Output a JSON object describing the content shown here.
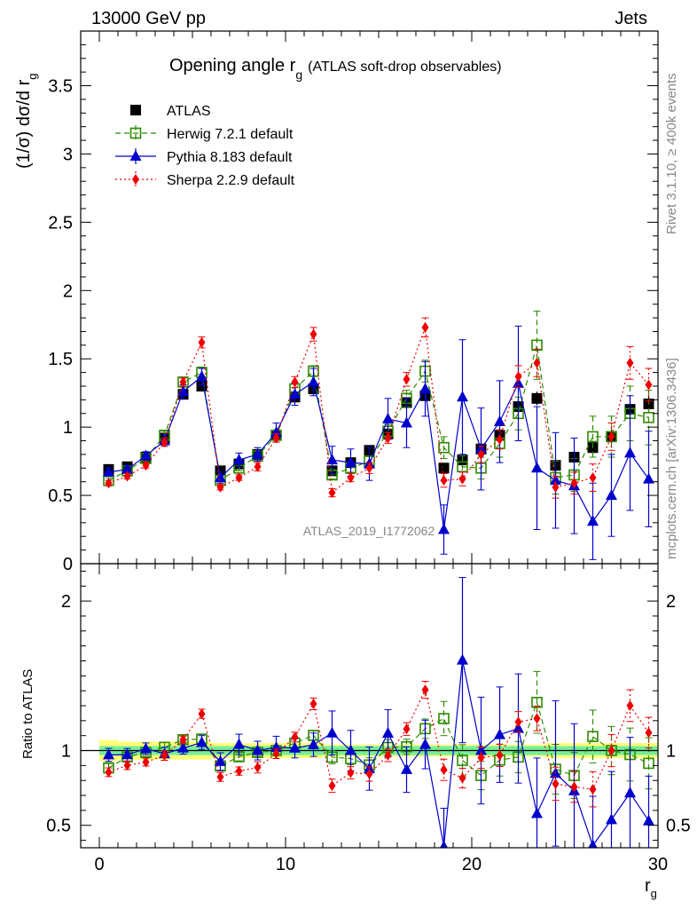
{
  "header": {
    "energy": "13000 GeV pp",
    "category": "Jets"
  },
  "side": {
    "rivet": "Rivet 3.1.10, ≥ 400k events",
    "mcplots": "mcplots.cern.ch [arXiv:1306.3436]"
  },
  "chart_data": {
    "type": "scatter",
    "title_main": "Opening angle r",
    "title_sub": "g",
    "title_paren": "(ATLAS soft-drop observables)",
    "analysis_id": "ATLAS_2019_I1772062",
    "xlabel_main": "r",
    "xlabel_sub": "g",
    "ylabel_main": "(1/σ) dσ/d r",
    "ylabel_sub": "g",
    "ratio_ylabel": "Ratio to ATLAS",
    "xlim": [
      -1,
      30
    ],
    "ylim_main": [
      0,
      3.9
    ],
    "ylim_ratio": [
      0.35,
      2.25
    ],
    "x_ticks": [
      "0",
      "10",
      "20",
      "30"
    ],
    "y_ticks_main": [
      "0",
      "0.5",
      "1",
      "1.5",
      "2",
      "2.5",
      "3",
      "3.5"
    ],
    "y_ticks_ratio": [
      "0.5",
      "1",
      "2"
    ],
    "x": [
      0.5,
      1.5,
      2.5,
      3.5,
      4.5,
      5.5,
      6.5,
      7.5,
      8.5,
      9.5,
      10.5,
      11.5,
      12.5,
      13.5,
      14.5,
      15.5,
      16.5,
      17.5,
      18.5,
      19.5,
      20.5,
      21.5,
      22.5,
      23.5,
      24.5,
      25.5,
      26.5,
      27.5,
      28.5,
      29.5
    ],
    "series": [
      {
        "name": "ATLAS",
        "color": "#000000",
        "marker": "square",
        "values": [
          0.69,
          0.71,
          0.78,
          0.92,
          1.24,
          1.3,
          0.68,
          0.73,
          0.8,
          0.94,
          1.22,
          1.28,
          0.68,
          0.74,
          0.83,
          0.95,
          1.18,
          1.23,
          0.7,
          0.76,
          0.84,
          0.94,
          1.15,
          1.21,
          0.72,
          0.78,
          0.85,
          0.93,
          1.13,
          1.17
        ],
        "errors": [
          0.02,
          0.02,
          0.02,
          0.02,
          0.03,
          0.03,
          0.02,
          0.02,
          0.02,
          0.02,
          0.03,
          0.03,
          0.02,
          0.02,
          0.02,
          0.03,
          0.03,
          0.04,
          0.03,
          0.03,
          0.03,
          0.04,
          0.05,
          0.05,
          0.04,
          0.04,
          0.05,
          0.05,
          0.05,
          0.06
        ]
      },
      {
        "name": "Herwig 7.2.1 default",
        "color": "#2e8a00",
        "marker": "open-square",
        "dash": "6,4",
        "values": [
          0.61,
          0.68,
          0.77,
          0.94,
          1.33,
          1.4,
          0.61,
          0.7,
          0.79,
          0.94,
          1.28,
          1.41,
          0.65,
          0.7,
          0.75,
          0.97,
          1.21,
          1.41,
          0.85,
          0.71,
          0.7,
          0.88,
          1.1,
          1.6,
          0.63,
          0.65,
          0.93,
          0.93,
          1.1,
          1.07
        ],
        "errors": [
          0.02,
          0.02,
          0.02,
          0.03,
          0.03,
          0.04,
          0.02,
          0.02,
          0.02,
          0.03,
          0.04,
          0.04,
          0.03,
          0.03,
          0.04,
          0.05,
          0.06,
          0.08,
          0.08,
          0.08,
          0.08,
          0.1,
          0.12,
          0.25,
          0.12,
          0.12,
          0.15,
          0.15,
          0.2,
          0.2
        ]
      },
      {
        "name": "Pythia 8.183 default",
        "color": "#0000cc",
        "marker": "triangle",
        "values": [
          0.67,
          0.69,
          0.79,
          0.9,
          1.26,
          1.37,
          0.63,
          0.76,
          0.8,
          0.96,
          1.24,
          1.33,
          0.76,
          0.74,
          0.73,
          1.06,
          1.03,
          1.28,
          0.25,
          1.22,
          0.84,
          1.04,
          1.32,
          0.7,
          0.61,
          0.57,
          0.31,
          0.5,
          0.81,
          0.62
        ],
        "errors": [
          0.03,
          0.03,
          0.03,
          0.04,
          0.05,
          0.06,
          0.04,
          0.05,
          0.05,
          0.07,
          0.08,
          0.1,
          0.1,
          0.1,
          0.12,
          0.15,
          0.18,
          0.2,
          0.18,
          0.42,
          0.3,
          0.3,
          0.42,
          0.45,
          0.35,
          0.35,
          0.28,
          0.3,
          0.42,
          0.35
        ]
      },
      {
        "name": "Sherpa 2.2.9 default",
        "color": "#ee0000",
        "marker": "diamond",
        "dash": "2,3",
        "values": [
          0.59,
          0.64,
          0.72,
          0.89,
          1.33,
          1.62,
          0.56,
          0.63,
          0.71,
          0.92,
          1.33,
          1.68,
          0.52,
          0.63,
          0.7,
          0.92,
          1.35,
          1.73,
          0.61,
          0.62,
          0.8,
          0.91,
          1.37,
          1.47,
          0.56,
          0.59,
          0.63,
          0.93,
          1.47,
          1.31
        ],
        "errors": [
          0.02,
          0.02,
          0.02,
          0.03,
          0.03,
          0.04,
          0.02,
          0.02,
          0.03,
          0.03,
          0.04,
          0.05,
          0.03,
          0.03,
          0.04,
          0.04,
          0.05,
          0.07,
          0.05,
          0.05,
          0.06,
          0.07,
          0.08,
          0.1,
          0.08,
          0.08,
          0.1,
          0.1,
          0.12,
          0.12
        ]
      }
    ],
    "band_inner": [
      0.03,
      0.03,
      0.03,
      0.03,
      0.03,
      0.03,
      0.03,
      0.03,
      0.03,
      0.03,
      0.03,
      0.03,
      0.03,
      0.03,
      0.03,
      0.03,
      0.03,
      0.03,
      0.03,
      0.03,
      0.03,
      0.03,
      0.03,
      0.03,
      0.03,
      0.03,
      0.03,
      0.03,
      0.03,
      0.03
    ],
    "band_outer": [
      0.07,
      0.06,
      0.06,
      0.06,
      0.06,
      0.06,
      0.05,
      0.05,
      0.05,
      0.05,
      0.05,
      0.05,
      0.04,
      0.04,
      0.04,
      0.04,
      0.04,
      0.04,
      0.04,
      0.04,
      0.04,
      0.04,
      0.04,
      0.04,
      0.05,
      0.05,
      0.05,
      0.05,
      0.05,
      0.05
    ]
  }
}
